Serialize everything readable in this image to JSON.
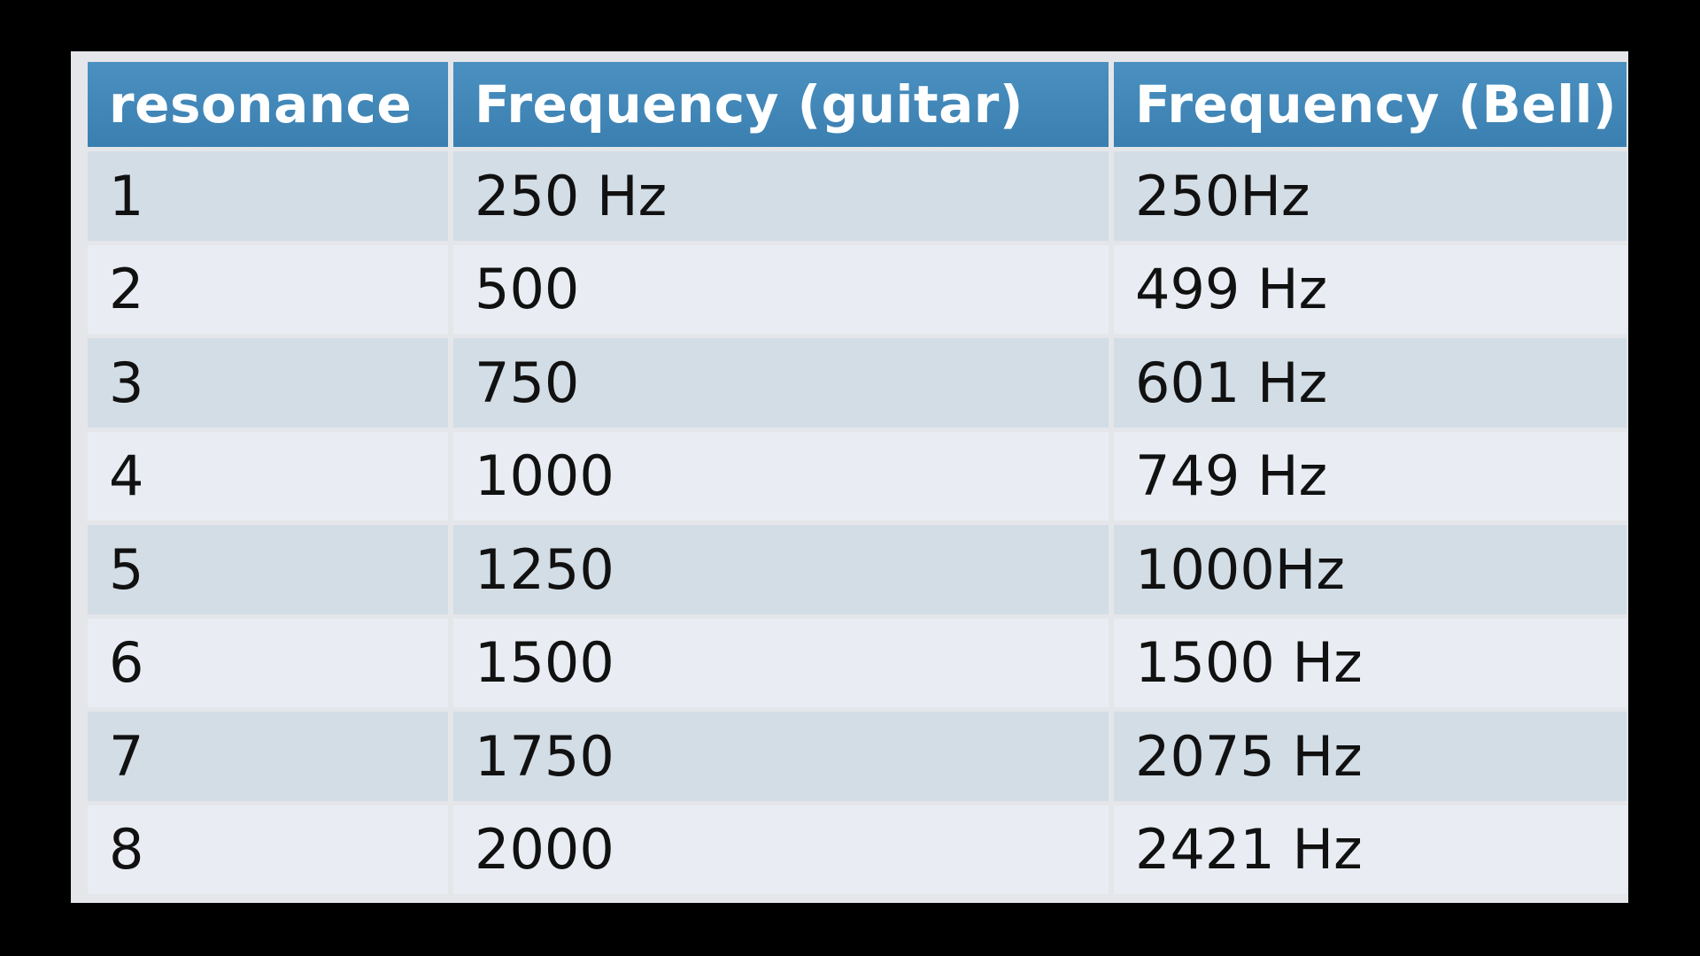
{
  "table": {
    "headers": [
      "resonance",
      "Frequency (guitar)",
      "Frequency (Bell)"
    ],
    "rows": [
      [
        "1",
        "250 Hz",
        "250Hz"
      ],
      [
        "2",
        "500",
        "499 Hz"
      ],
      [
        "3",
        "750",
        "601 Hz"
      ],
      [
        "4",
        "1000",
        "749 Hz"
      ],
      [
        "5",
        "1250",
        "1000Hz"
      ],
      [
        "6",
        "1500",
        "1500 Hz"
      ],
      [
        "7",
        "1750",
        "2075 Hz"
      ],
      [
        "8",
        "2000",
        "2421 Hz"
      ]
    ]
  },
  "colors": {
    "header_bg": "#3f87b8",
    "row_dark": "#d3dde6",
    "row_light": "#e9edf3",
    "frame": "#000000"
  }
}
